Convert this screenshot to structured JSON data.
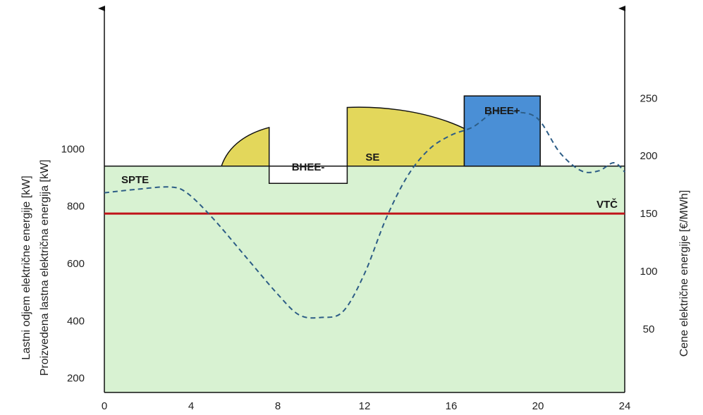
{
  "chart_data": {
    "type": "area",
    "x_ticks": [
      "0",
      "4",
      "8",
      "12",
      "16",
      "20",
      "24"
    ],
    "xlim": [
      0,
      24
    ],
    "left_axis": {
      "label_line1": "Lastni odjem električne energije [kW]",
      "label_line2": "Proizvedena lastna električna energija [kW]",
      "ticks": [
        "200",
        "400",
        "600",
        "800",
        "1000"
      ],
      "tick_values": [
        200,
        400,
        600,
        800,
        1000
      ],
      "ylim": [
        150,
        1520
      ]
    },
    "right_axis": {
      "label": "Cene električne energije [€/MWh]",
      "ticks": [
        "50",
        "100",
        "150",
        "200",
        "250"
      ],
      "tick_values": [
        50,
        100,
        150,
        200,
        250
      ],
      "ylim": [
        -5,
        335
      ]
    },
    "regions": {
      "spte": {
        "label": "SPTE",
        "color": "#d8f2d2",
        "x": [
          0,
          24
        ],
        "y": 940
      },
      "bhee_minus": {
        "label": "BHEE-",
        "color": "#ffffff",
        "x": [
          7.6,
          11.2
        ],
        "y": [
          880,
          940
        ]
      },
      "se_small": {
        "color": "#e3d75b",
        "x": [
          5.4,
          7.6
        ],
        "y_peak": 1075
      },
      "se": {
        "label": "SE",
        "color": "#e3d75b",
        "x": [
          11.2,
          18.6
        ],
        "y_peak": 1145
      },
      "bhee_plus": {
        "label": "BHEE+",
        "color": "#4a8fd6",
        "x": [
          16.6,
          20.1
        ],
        "y_top": 1185
      }
    },
    "vtc": {
      "label": "VTČ",
      "value": 150,
      "color": "#c0141a"
    },
    "price_series": {
      "style": "dashed",
      "color": "#2d5d86",
      "x": [
        0,
        1.5,
        3,
        3.8,
        5,
        6.5,
        8,
        9,
        10,
        11,
        12,
        13,
        14,
        15,
        16,
        17,
        18,
        19,
        20,
        21,
        22,
        22.8,
        23.5,
        24
      ],
      "y": [
        168,
        171,
        173,
        168,
        146,
        113,
        80,
        62,
        60,
        65,
        98,
        146,
        183,
        206,
        218,
        225,
        238,
        238,
        232,
        203,
        187,
        187,
        194,
        186
      ]
    }
  }
}
